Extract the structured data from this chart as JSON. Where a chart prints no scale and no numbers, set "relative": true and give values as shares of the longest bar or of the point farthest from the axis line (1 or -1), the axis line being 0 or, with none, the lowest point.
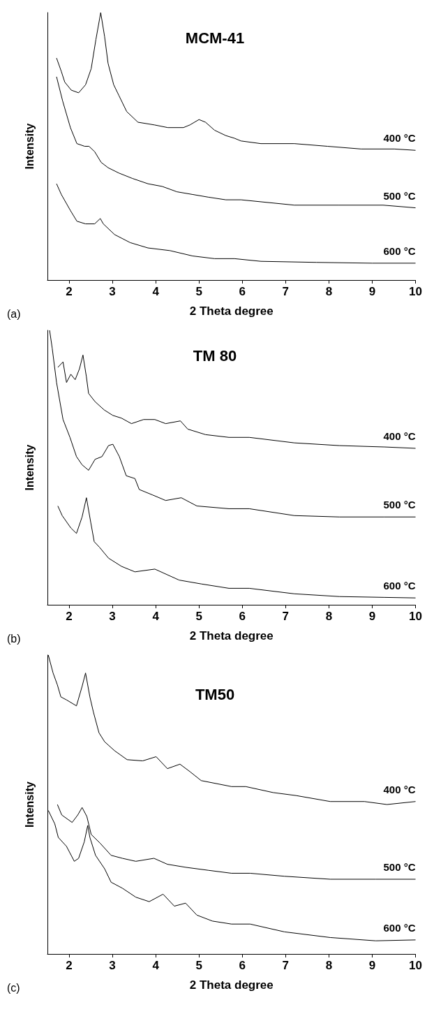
{
  "chart_data": [
    {
      "type": "line",
      "title": "MCM-41",
      "xlabel": "2 Theta degree",
      "ylabel": "Intensity",
      "relative": true,
      "xlim": [
        1.5,
        10
      ],
      "xticks": [
        2,
        3,
        4,
        5,
        6,
        7,
        8,
        9,
        10
      ],
      "grid": false,
      "legend": false,
      "annotations": [
        "(a)"
      ],
      "series": [
        {
          "name": "400 °C",
          "color": "#000000",
          "x": [
            1.71,
            1.82,
            1.9,
            2.05,
            2.22,
            2.38,
            2.51,
            2.62,
            2.73,
            2.82,
            2.9,
            3.03,
            3.15,
            3.33,
            3.59,
            3.97,
            4.28,
            4.64,
            4.79,
            5.0,
            5.15,
            5.36,
            5.62,
            5.82,
            5.97,
            6.43,
            7.2,
            7.97,
            8.74,
            9.51,
            10
          ],
          "values": [
            0.83,
            0.78,
            0.74,
            0.71,
            0.7,
            0.73,
            0.79,
            0.9,
            1.0,
            0.91,
            0.81,
            0.73,
            0.69,
            0.63,
            0.59,
            0.58,
            0.57,
            0.57,
            0.58,
            0.6,
            0.59,
            0.56,
            0.54,
            0.53,
            0.52,
            0.51,
            0.51,
            0.5,
            0.49,
            0.49,
            0.485
          ]
        },
        {
          "name": "500 °C",
          "color": "#000000",
          "x": [
            1.71,
            1.85,
            2.03,
            2.18,
            2.36,
            2.46,
            2.59,
            2.74,
            2.9,
            3.15,
            3.46,
            3.82,
            4.15,
            4.49,
            4.85,
            5.21,
            5.62,
            5.97,
            7.2,
            8.22,
            9.25,
            10
          ],
          "values": [
            0.76,
            0.67,
            0.57,
            0.51,
            0.5,
            0.5,
            0.48,
            0.44,
            0.42,
            0.4,
            0.38,
            0.36,
            0.35,
            0.33,
            0.32,
            0.31,
            0.3,
            0.3,
            0.28,
            0.28,
            0.28,
            0.27
          ]
        },
        {
          "name": "600 °C",
          "color": "#000000",
          "x": [
            1.71,
            1.82,
            2.03,
            2.18,
            2.38,
            2.59,
            2.72,
            2.79,
            3.05,
            3.41,
            3.82,
            4.33,
            4.85,
            5.36,
            5.82,
            6.43,
            7.71,
            9.0,
            10
          ],
          "values": [
            0.36,
            0.32,
            0.26,
            0.22,
            0.21,
            0.21,
            0.23,
            0.21,
            0.17,
            0.14,
            0.12,
            0.11,
            0.09,
            0.08,
            0.08,
            0.07,
            0.066,
            0.063,
            0.063
          ]
        }
      ]
    },
    {
      "type": "line",
      "title": "TM 80",
      "xlabel": "2 Theta degree",
      "ylabel": "Intensity",
      "relative": true,
      "xlim": [
        1.5,
        10
      ],
      "xticks": [
        2,
        3,
        4,
        5,
        6,
        7,
        8,
        9,
        10
      ],
      "grid": false,
      "legend": false,
      "annotations": [
        "(b)"
      ],
      "series": [
        {
          "name": "400 °C",
          "color": "#000000",
          "x": [
            1.74,
            1.86,
            1.94,
            2.04,
            2.14,
            2.24,
            2.32,
            2.4,
            2.45,
            2.6,
            2.81,
            3.01,
            3.21,
            3.44,
            3.72,
            3.98,
            4.23,
            4.57,
            4.74,
            5.15,
            5.69,
            6.16,
            7.2,
            8.24,
            9.28,
            10
          ],
          "values": [
            0.865,
            0.885,
            0.81,
            0.84,
            0.82,
            0.86,
            0.91,
            0.83,
            0.77,
            0.74,
            0.71,
            0.69,
            0.68,
            0.66,
            0.675,
            0.675,
            0.66,
            0.67,
            0.64,
            0.62,
            0.61,
            0.61,
            0.59,
            0.58,
            0.575,
            0.57
          ]
        },
        {
          "name": "500 °C",
          "color": "#000000",
          "x": [
            1.55,
            1.61,
            1.71,
            1.86,
            2.02,
            2.17,
            2.3,
            2.45,
            2.6,
            2.76,
            2.91,
            3.01,
            3.16,
            3.32,
            3.52,
            3.62,
            3.93,
            4.23,
            4.59,
            4.95,
            5.69,
            6.16,
            7.2,
            8.24,
            9.28,
            10
          ],
          "values": [
            1.0,
            0.935,
            0.81,
            0.675,
            0.61,
            0.54,
            0.51,
            0.49,
            0.53,
            0.54,
            0.58,
            0.585,
            0.54,
            0.47,
            0.46,
            0.42,
            0.4,
            0.38,
            0.39,
            0.36,
            0.35,
            0.35,
            0.325,
            0.32,
            0.32,
            0.32
          ]
        },
        {
          "name": "600 °C",
          "color": "#000000",
          "x": [
            1.74,
            1.84,
            2.04,
            2.17,
            2.3,
            2.4,
            2.5,
            2.58,
            2.7,
            2.91,
            3.21,
            3.52,
            3.98,
            4.54,
            5.05,
            5.69,
            6.16,
            7.2,
            8.24,
            9.28,
            10
          ],
          "values": [
            0.36,
            0.325,
            0.28,
            0.26,
            0.32,
            0.39,
            0.3,
            0.23,
            0.21,
            0.17,
            0.14,
            0.12,
            0.13,
            0.09,
            0.076,
            0.06,
            0.06,
            0.04,
            0.03,
            0.027,
            0.025
          ]
        }
      ]
    },
    {
      "type": "line",
      "title": "TM50",
      "xlabel": "2 Theta degree",
      "ylabel": "Intensity",
      "relative": true,
      "xlim": [
        1.5,
        10
      ],
      "xticks": [
        2,
        3,
        4,
        5,
        6,
        7,
        8,
        9,
        10
      ],
      "grid": false,
      "legend": false,
      "annotations": [
        "(c)"
      ],
      "series": [
        {
          "name": "400 °C",
          "color": "#000000",
          "x": [
            1.52,
            1.63,
            1.73,
            1.81,
            1.94,
            2.17,
            2.3,
            2.38,
            2.48,
            2.56,
            2.69,
            2.82,
            3.05,
            3.34,
            3.7,
            4.01,
            4.27,
            4.56,
            4.79,
            5.05,
            5.75,
            6.08,
            6.71,
            7.24,
            8.03,
            8.82,
            9.34,
            10
          ],
          "values": [
            1.0,
            0.94,
            0.9,
            0.86,
            0.85,
            0.83,
            0.895,
            0.94,
            0.86,
            0.81,
            0.74,
            0.71,
            0.68,
            0.65,
            0.646,
            0.66,
            0.62,
            0.635,
            0.61,
            0.58,
            0.56,
            0.56,
            0.54,
            0.53,
            0.51,
            0.51,
            0.5,
            0.51
          ]
        },
        {
          "name": "500 °C",
          "color": "#000000",
          "x": [
            1.73,
            1.83,
            2.07,
            2.2,
            2.3,
            2.41,
            2.51,
            2.72,
            2.97,
            3.23,
            3.54,
            3.96,
            4.27,
            4.69,
            5.21,
            5.75,
            6.18,
            6.97,
            8.03,
            9.08,
            10
          ],
          "values": [
            0.5,
            0.465,
            0.44,
            0.465,
            0.49,
            0.46,
            0.4,
            0.37,
            0.33,
            0.32,
            0.31,
            0.32,
            0.3,
            0.29,
            0.28,
            0.27,
            0.27,
            0.26,
            0.25,
            0.25,
            0.25
          ]
        },
        {
          "name": "600 °C",
          "color": "#000000",
          "x": [
            1.52,
            1.67,
            1.75,
            1.94,
            2.12,
            2.22,
            2.35,
            2.43,
            2.48,
            2.61,
            2.82,
            2.97,
            3.23,
            3.54,
            3.85,
            4.17,
            4.43,
            4.69,
            4.95,
            5.31,
            5.75,
            6.18,
            6.97,
            8.03,
            9.08,
            10
          ],
          "values": [
            0.48,
            0.435,
            0.39,
            0.36,
            0.31,
            0.32,
            0.375,
            0.43,
            0.39,
            0.33,
            0.285,
            0.24,
            0.22,
            0.19,
            0.175,
            0.2,
            0.16,
            0.17,
            0.13,
            0.11,
            0.1,
            0.1,
            0.074,
            0.055,
            0.044,
            0.047
          ]
        }
      ]
    }
  ]
}
